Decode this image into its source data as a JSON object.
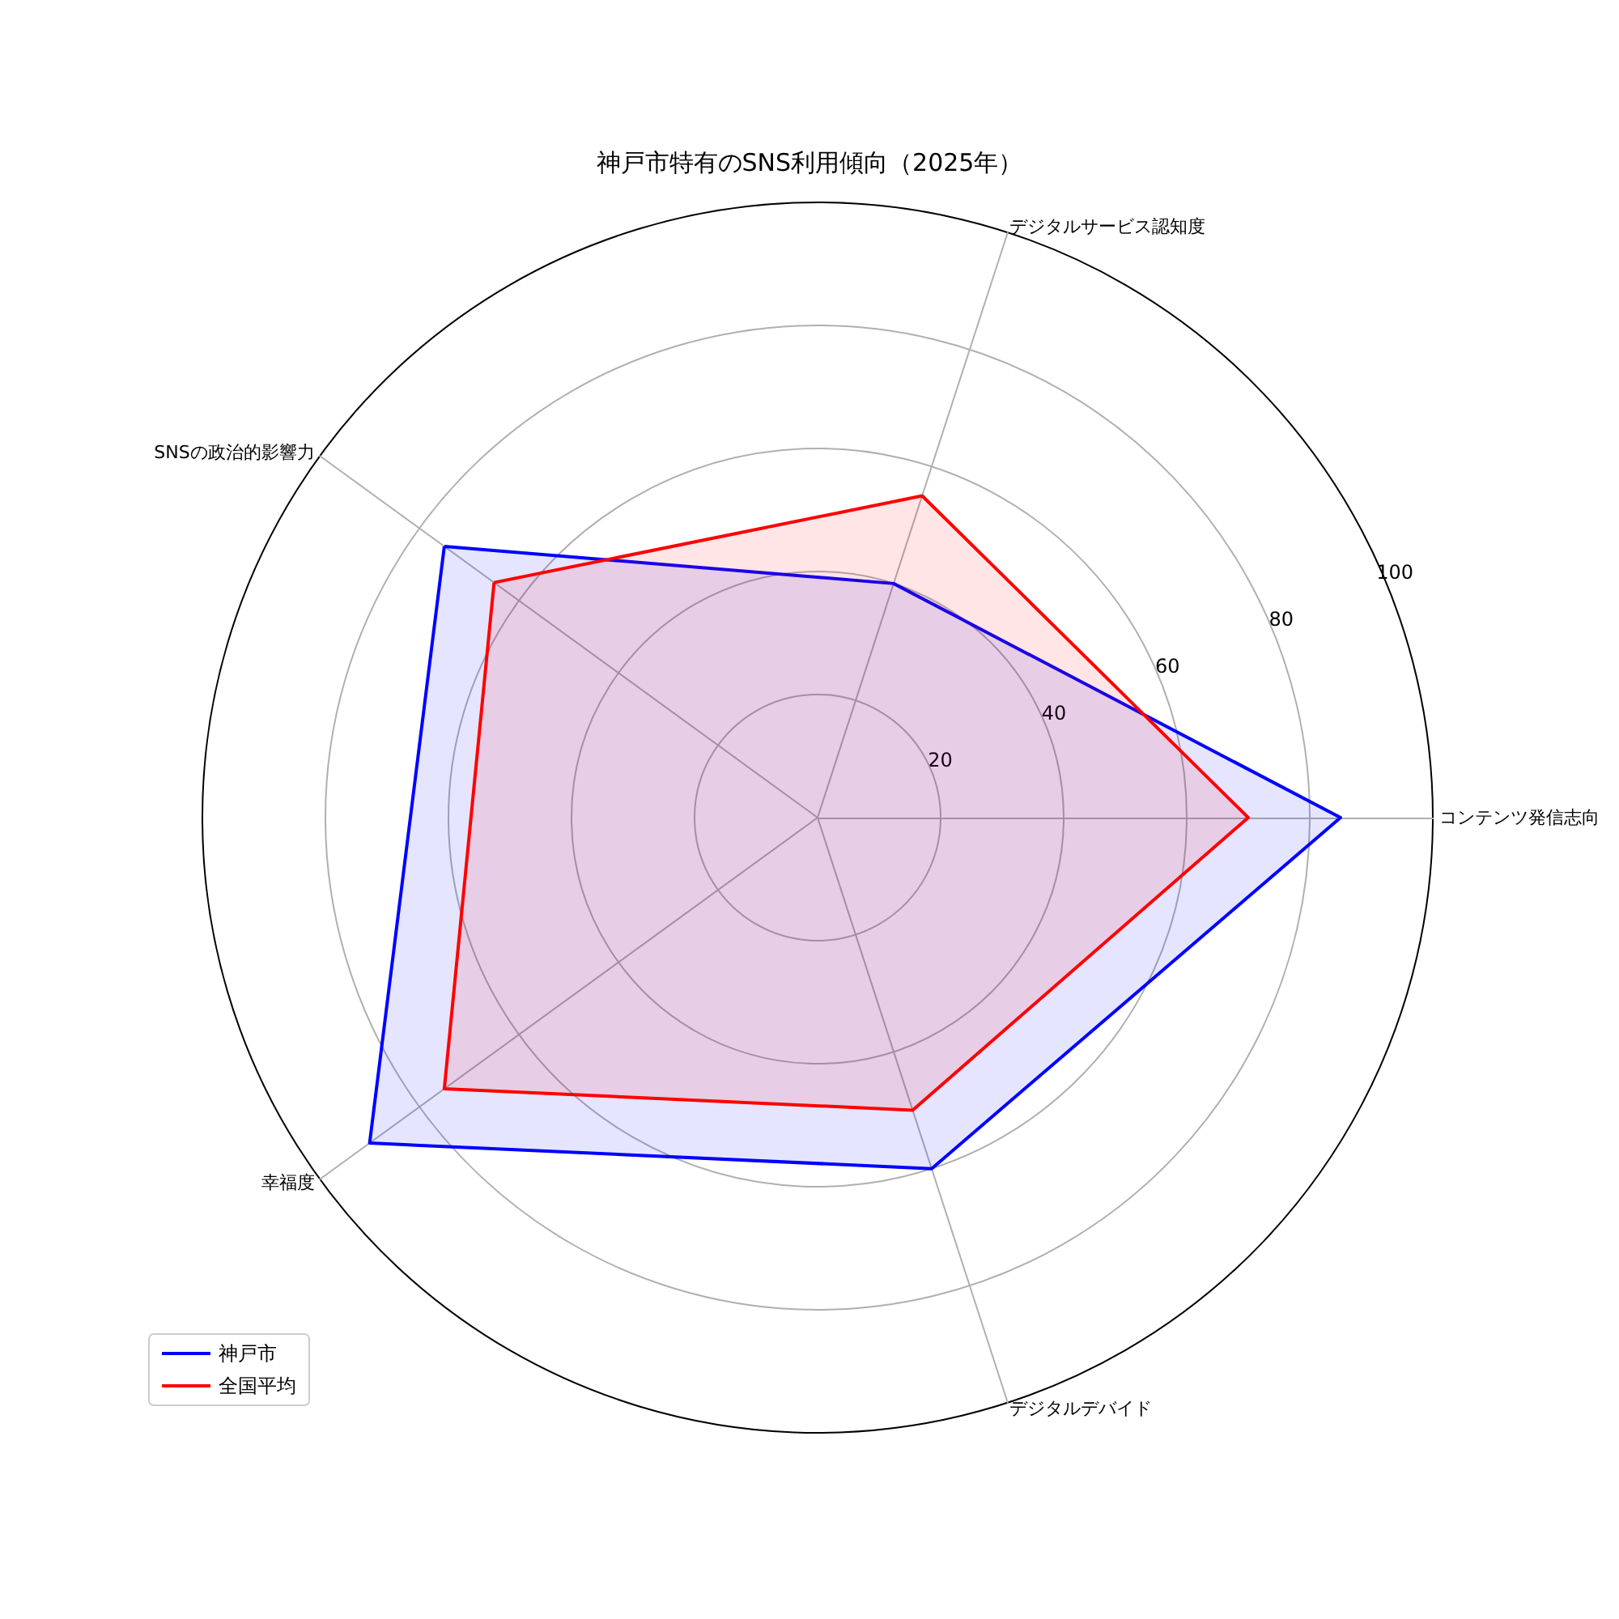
{
  "chart_data": {
    "type": "radar",
    "title": "神戸市特有のSNS利用傾向（2025年）",
    "categories": [
      "デジタルサービス認知度",
      "コンテンツ発信志向",
      "デジタルデバイド",
      "幸福度",
      "SNSの政治的影響力"
    ],
    "series": [
      {
        "name": "神戸市",
        "color": "#0000ff",
        "values": [
          40,
          85,
          60,
          90,
          75
        ]
      },
      {
        "name": "全国平均",
        "color": "#ff0000",
        "values": [
          55,
          70,
          50,
          75,
          65
        ]
      }
    ],
    "ylim": [
      0,
      100
    ],
    "yticks": [
      20,
      40,
      60,
      80,
      100
    ],
    "grid": true,
    "legend": "bottom left",
    "marker": "none"
  }
}
